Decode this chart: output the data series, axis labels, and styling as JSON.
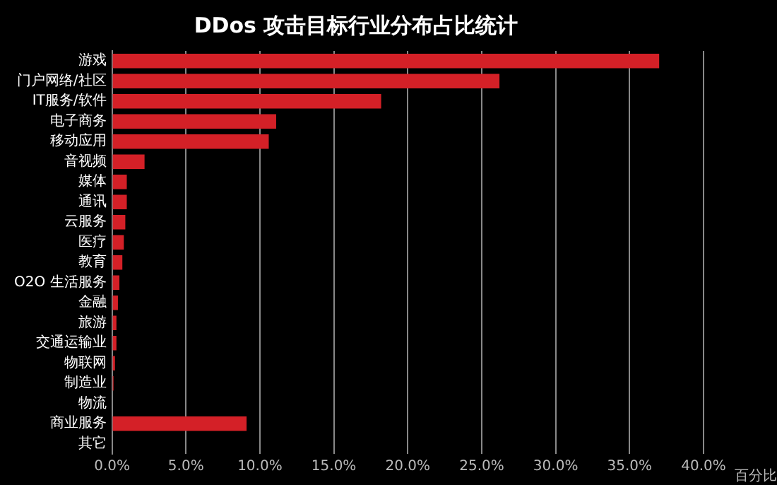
{
  "chart_data": {
    "type": "bar",
    "orientation": "horizontal",
    "title": "DDos 攻击目标行业分布占比统计",
    "xlabel": "百分比",
    "categories": [
      "游戏",
      "门户网络/社区",
      "IT服务/软件",
      "电子商务",
      "移动应用",
      "音视频",
      "媒体",
      "通讯",
      "云服务",
      "医疗",
      "教育",
      "O2O 生活服务",
      "金融",
      "旅游",
      "交通运输业",
      "物联网",
      "制造业",
      "物流",
      "商业服务",
      "其它"
    ],
    "values": [
      37.0,
      26.2,
      18.2,
      11.1,
      10.6,
      2.2,
      1.0,
      1.0,
      0.9,
      0.8,
      0.7,
      0.5,
      0.4,
      0.3,
      0.3,
      0.2,
      0.1,
      null,
      9.1,
      0
    ],
    "color": "#d42027",
    "xlim": [
      0,
      40
    ],
    "xticks": [
      {
        "value": 0,
        "label": "0.0%"
      },
      {
        "value": 5,
        "label": "5.0%"
      },
      {
        "value": 10,
        "label": "10.0%"
      },
      {
        "value": 15,
        "label": "15.0%"
      },
      {
        "value": 20,
        "label": "20.0%"
      },
      {
        "value": 25,
        "label": "25.0%"
      },
      {
        "value": 30,
        "label": "30.0%"
      },
      {
        "value": 35,
        "label": "35.0%"
      },
      {
        "value": 40,
        "label": "40.0%"
      }
    ],
    "grid": "x",
    "legend": false
  }
}
